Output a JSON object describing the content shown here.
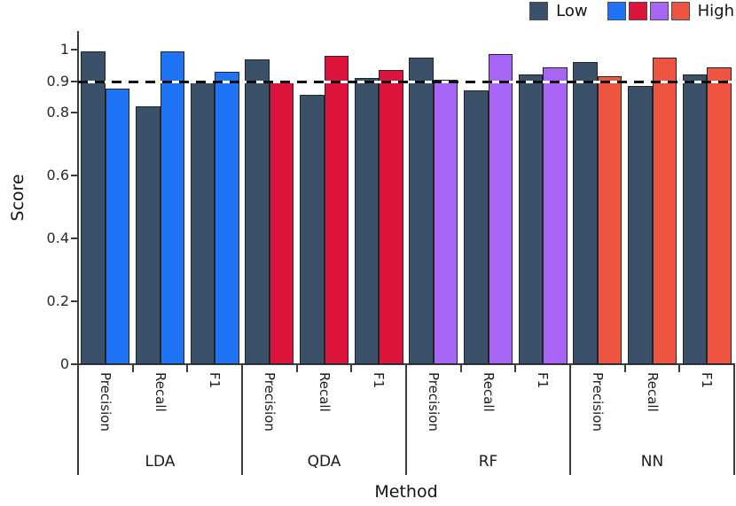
{
  "chart_data": {
    "type": "bar",
    "title": "",
    "xlabel": "Method",
    "ylabel": "Score",
    "ylim": [
      0,
      1.06
    ],
    "grid": false,
    "ytick_labels": [
      "0",
      "0.2",
      "0.4",
      "0.6",
      "0.8",
      "0.9",
      "1"
    ],
    "ytick_values": [
      0,
      0.2,
      0.4,
      0.6,
      0.8,
      0.9,
      1
    ],
    "reference_line_y": 0.9,
    "metrics": [
      "Precision",
      "Recall",
      "F1"
    ],
    "low_color": "#3A5169",
    "bar_edge_color": "#20242C",
    "groups": [
      {
        "method": "LDA",
        "high_color": "#1E74F5",
        "low": [
          0.995,
          0.82,
          0.9
        ],
        "high": [
          0.875,
          0.995,
          0.93
        ]
      },
      {
        "method": "QDA",
        "high_color": "#DC143C",
        "low": [
          0.97,
          0.855,
          0.91
        ],
        "high": [
          0.9,
          0.98,
          0.935
        ]
      },
      {
        "method": "RF",
        "high_color": "#A865F5",
        "low": [
          0.975,
          0.87,
          0.92
        ],
        "high": [
          0.905,
          0.985,
          0.945
        ]
      },
      {
        "method": "NN",
        "high_color": "#EE5540",
        "low": [
          0.96,
          0.885,
          0.92
        ],
        "high": [
          0.915,
          0.975,
          0.945
        ]
      }
    ],
    "legend": {
      "position": "top-right",
      "low_label": "Low",
      "high_label": "High",
      "low_color": "#3A5169",
      "high_colors": [
        "#1E74F5",
        "#DC143C",
        "#A865F5",
        "#EE5540"
      ]
    }
  }
}
